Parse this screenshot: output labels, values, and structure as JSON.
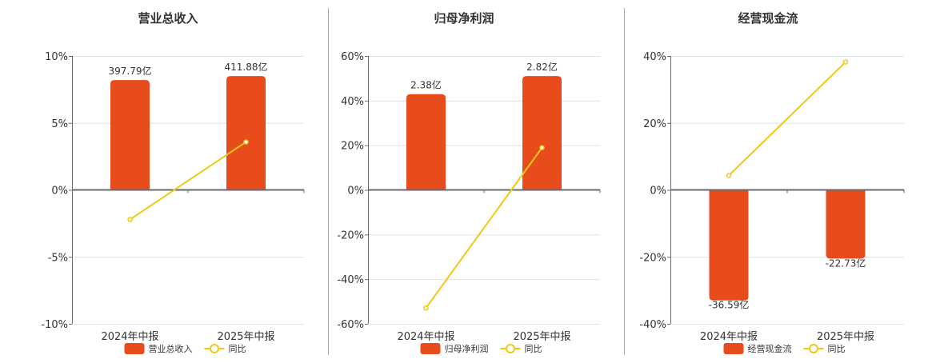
{
  "colors": {
    "bar": "#E84C1C",
    "line": "#F2C811",
    "grid": "#dde3ec",
    "axis": "#666a73",
    "text": "#333333"
  },
  "legend_line_label": "同比",
  "chart_data": [
    {
      "type": "bar+line",
      "title": "营业总收入",
      "categories": [
        "2024年中报",
        "2025年中报"
      ],
      "series": [
        {
          "name": "营业总收入",
          "type": "bar",
          "labels": [
            "397.79亿",
            "411.88亿"
          ],
          "values_pct_axis": [
            8.2,
            8.5
          ]
        },
        {
          "name": "同比",
          "type": "line",
          "values": [
            -2.21,
            3.58
          ]
        }
      ],
      "ylim": [
        -10,
        10
      ],
      "yticks": [
        "10%",
        "5%",
        "0%",
        "-5%",
        "-10%"
      ],
      "ytick_values": [
        10,
        5,
        0,
        -5,
        -10
      ]
    },
    {
      "type": "bar+line",
      "title": "归母净利润",
      "categories": [
        "2024年中报",
        "2025年中报"
      ],
      "series": [
        {
          "name": "归母净利润",
          "type": "bar",
          "labels": [
            "2.38亿",
            "2.82亿"
          ],
          "values_pct_axis": [
            42.9,
            51.0
          ]
        },
        {
          "name": "同比",
          "type": "line",
          "values": [
            -52.9,
            18.9
          ]
        }
      ],
      "ylim": [
        -60,
        60
      ],
      "yticks": [
        "60%",
        "40%",
        "20%",
        "0%",
        "-20%",
        "-40%",
        "-60%"
      ],
      "ytick_values": [
        60,
        40,
        20,
        0,
        -20,
        -40,
        -60
      ]
    },
    {
      "type": "bar+line",
      "title": "经营现金流",
      "categories": [
        "2024年中报",
        "2025年中报"
      ],
      "series": [
        {
          "name": "经营现金流",
          "type": "bar",
          "labels": [
            "-36.59亿",
            "-22.73亿"
          ],
          "values_pct_axis": [
            -33.0,
            -20.5
          ]
        },
        {
          "name": "同比",
          "type": "line",
          "values": [
            4.3,
            38.2
          ]
        }
      ],
      "ylim": [
        -40,
        40
      ],
      "yticks": [
        "40%",
        "20%",
        "0%",
        "-20%",
        "-40%"
      ],
      "ytick_values": [
        40,
        20,
        0,
        -20,
        -40
      ]
    }
  ]
}
